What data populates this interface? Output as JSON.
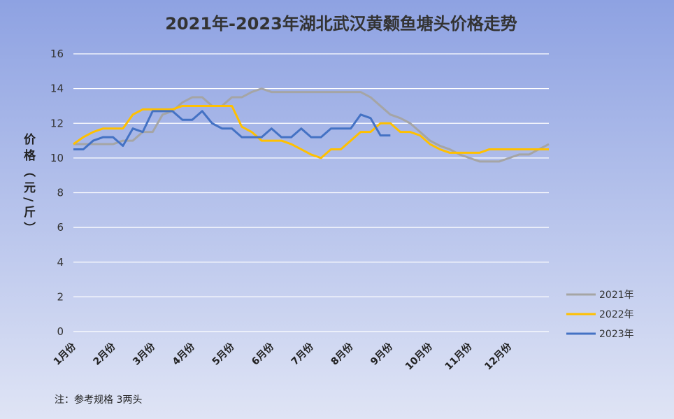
{
  "chart_data": {
    "type": "line",
    "title": "2021年-2023年湖北武汉黄颡鱼塘头价格走势",
    "y_label": "价格（元/斤）",
    "note": "注：参考规格  3两头",
    "categories": [
      "1月份",
      null,
      null,
      null,
      "2月份",
      null,
      null,
      null,
      "3月份",
      null,
      null,
      null,
      "4月份",
      null,
      null,
      null,
      "5月份",
      null,
      null,
      null,
      "6月份",
      null,
      null,
      null,
      "7月份",
      null,
      null,
      null,
      "8月份",
      null,
      null,
      null,
      "9月份",
      null,
      null,
      null,
      "10月份",
      null,
      null,
      null,
      "11月份",
      null,
      null,
      null,
      "12月份",
      null,
      null,
      null,
      null
    ],
    "series": [
      {
        "name": "2021年",
        "color": "#a5a5a5",
        "values": [
          10.8,
          10.8,
          10.8,
          10.8,
          10.8,
          11,
          11,
          11.5,
          11.5,
          12.5,
          12.7,
          13.2,
          13.5,
          13.5,
          13,
          13,
          13.5,
          13.5,
          13.8,
          14,
          13.8,
          13.8,
          13.8,
          13.8,
          13.8,
          13.8,
          13.8,
          13.8,
          13.8,
          13.8,
          13.5,
          13,
          12.5,
          12.3,
          12,
          11.5,
          11,
          10.7,
          10.5,
          10.2,
          10,
          9.8,
          9.8,
          9.8,
          10,
          10.2,
          10.2,
          10.5,
          10.8
        ]
      },
      {
        "name": "2022年",
        "color": "#ffc000",
        "values": [
          10.8,
          11.2,
          11.5,
          11.7,
          11.7,
          11.7,
          12.5,
          12.8,
          12.8,
          12.8,
          12.8,
          13,
          13,
          13,
          13,
          13,
          13,
          11.8,
          11.5,
          11,
          11,
          11,
          10.8,
          10.5,
          10.2,
          10,
          10.5,
          10.5,
          11,
          11.5,
          11.5,
          12,
          12,
          11.5,
          11.5,
          11.3,
          10.8,
          10.5,
          10.3,
          10.3,
          10.3,
          10.3,
          10.5,
          10.5,
          10.5,
          10.5,
          10.5,
          10.5,
          10.5
        ]
      },
      {
        "name": "2023年",
        "color": "#4472c4",
        "values": [
          10.5,
          10.5,
          11,
          11.2,
          11.2,
          10.7,
          11.7,
          11.5,
          12.7,
          12.7,
          12.7,
          12.2,
          12.2,
          12.7,
          12,
          11.7,
          11.7,
          11.2,
          11.2,
          11.2,
          11.7,
          11.2,
          11.2,
          11.7,
          11.2,
          11.2,
          11.7,
          11.7,
          11.7,
          12.5,
          12.3,
          11.3,
          11.3,
          null,
          null,
          null,
          null,
          null,
          null,
          null,
          null,
          null,
          null,
          null,
          null,
          null,
          null,
          null,
          null
        ]
      }
    ],
    "ylim": [
      0,
      16
    ],
    "yticks": [
      0,
      2,
      4,
      6,
      8,
      10,
      12,
      14,
      16
    ],
    "grid": true,
    "legend": "right"
  }
}
